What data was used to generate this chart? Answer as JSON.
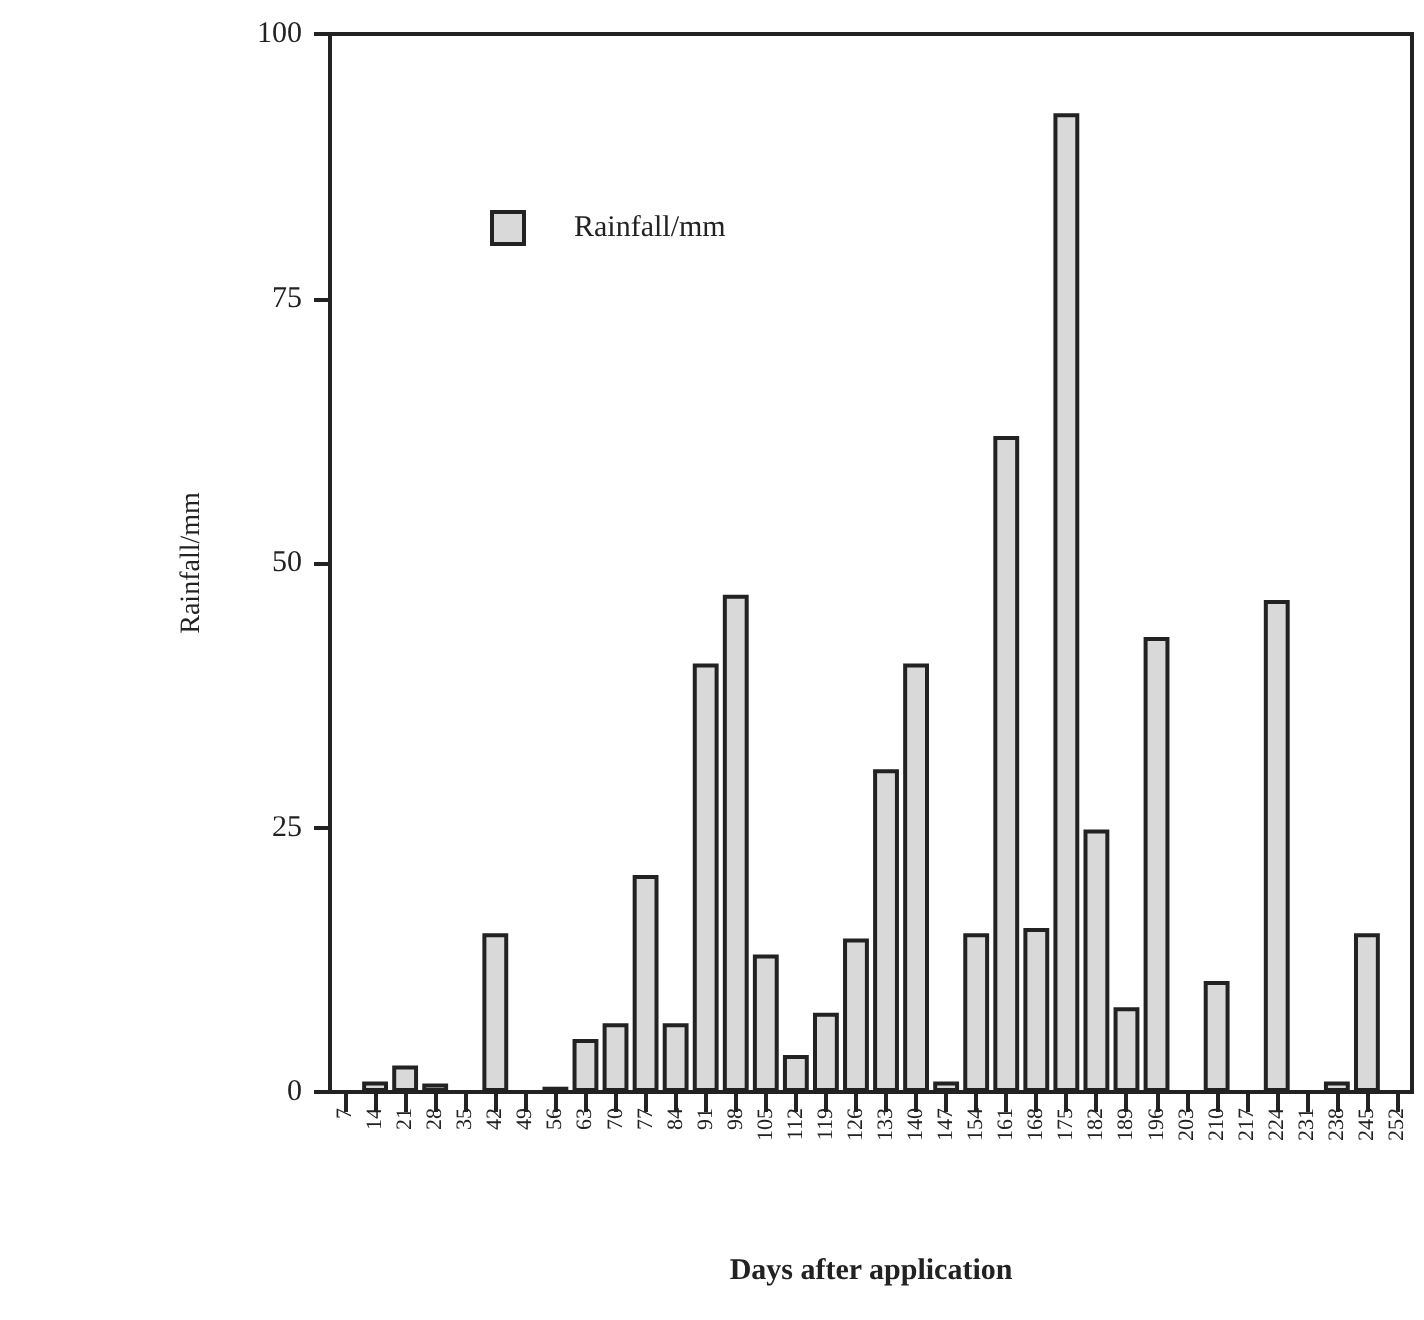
{
  "chart_data": {
    "type": "bar",
    "xlabel": "Days after application",
    "ylabel": "Rainfall/mm",
    "categories": [
      "7",
      "14",
      "21",
      "28",
      "35",
      "42",
      "49",
      "56",
      "63",
      "70",
      "77",
      "84",
      "91",
      "98",
      "105",
      "112",
      "119",
      "126",
      "133",
      "140",
      "147",
      "154",
      "161",
      "168",
      "175",
      "182",
      "189",
      "196",
      "203",
      "210",
      "217",
      "224",
      "231",
      "238",
      "245",
      "252"
    ],
    "series": [
      {
        "name": "Rainfall/mm",
        "color": "#d9d9d9",
        "values": [
          0,
          1,
          2.5,
          0.8,
          0,
          15,
          0,
          0.5,
          5,
          6.5,
          20.5,
          6.5,
          40.5,
          47,
          13,
          3.5,
          7.5,
          14.5,
          30.5,
          40.5,
          1,
          15,
          62,
          15.5,
          92.5,
          24.8,
          8,
          43,
          0,
          10.5,
          0,
          46.5,
          0,
          1,
          15,
          0
        ]
      }
    ],
    "ylim": [
      0,
      100
    ],
    "yticks": [
      0,
      25,
      50,
      75,
      100
    ],
    "grid": false,
    "legend": "top left"
  }
}
